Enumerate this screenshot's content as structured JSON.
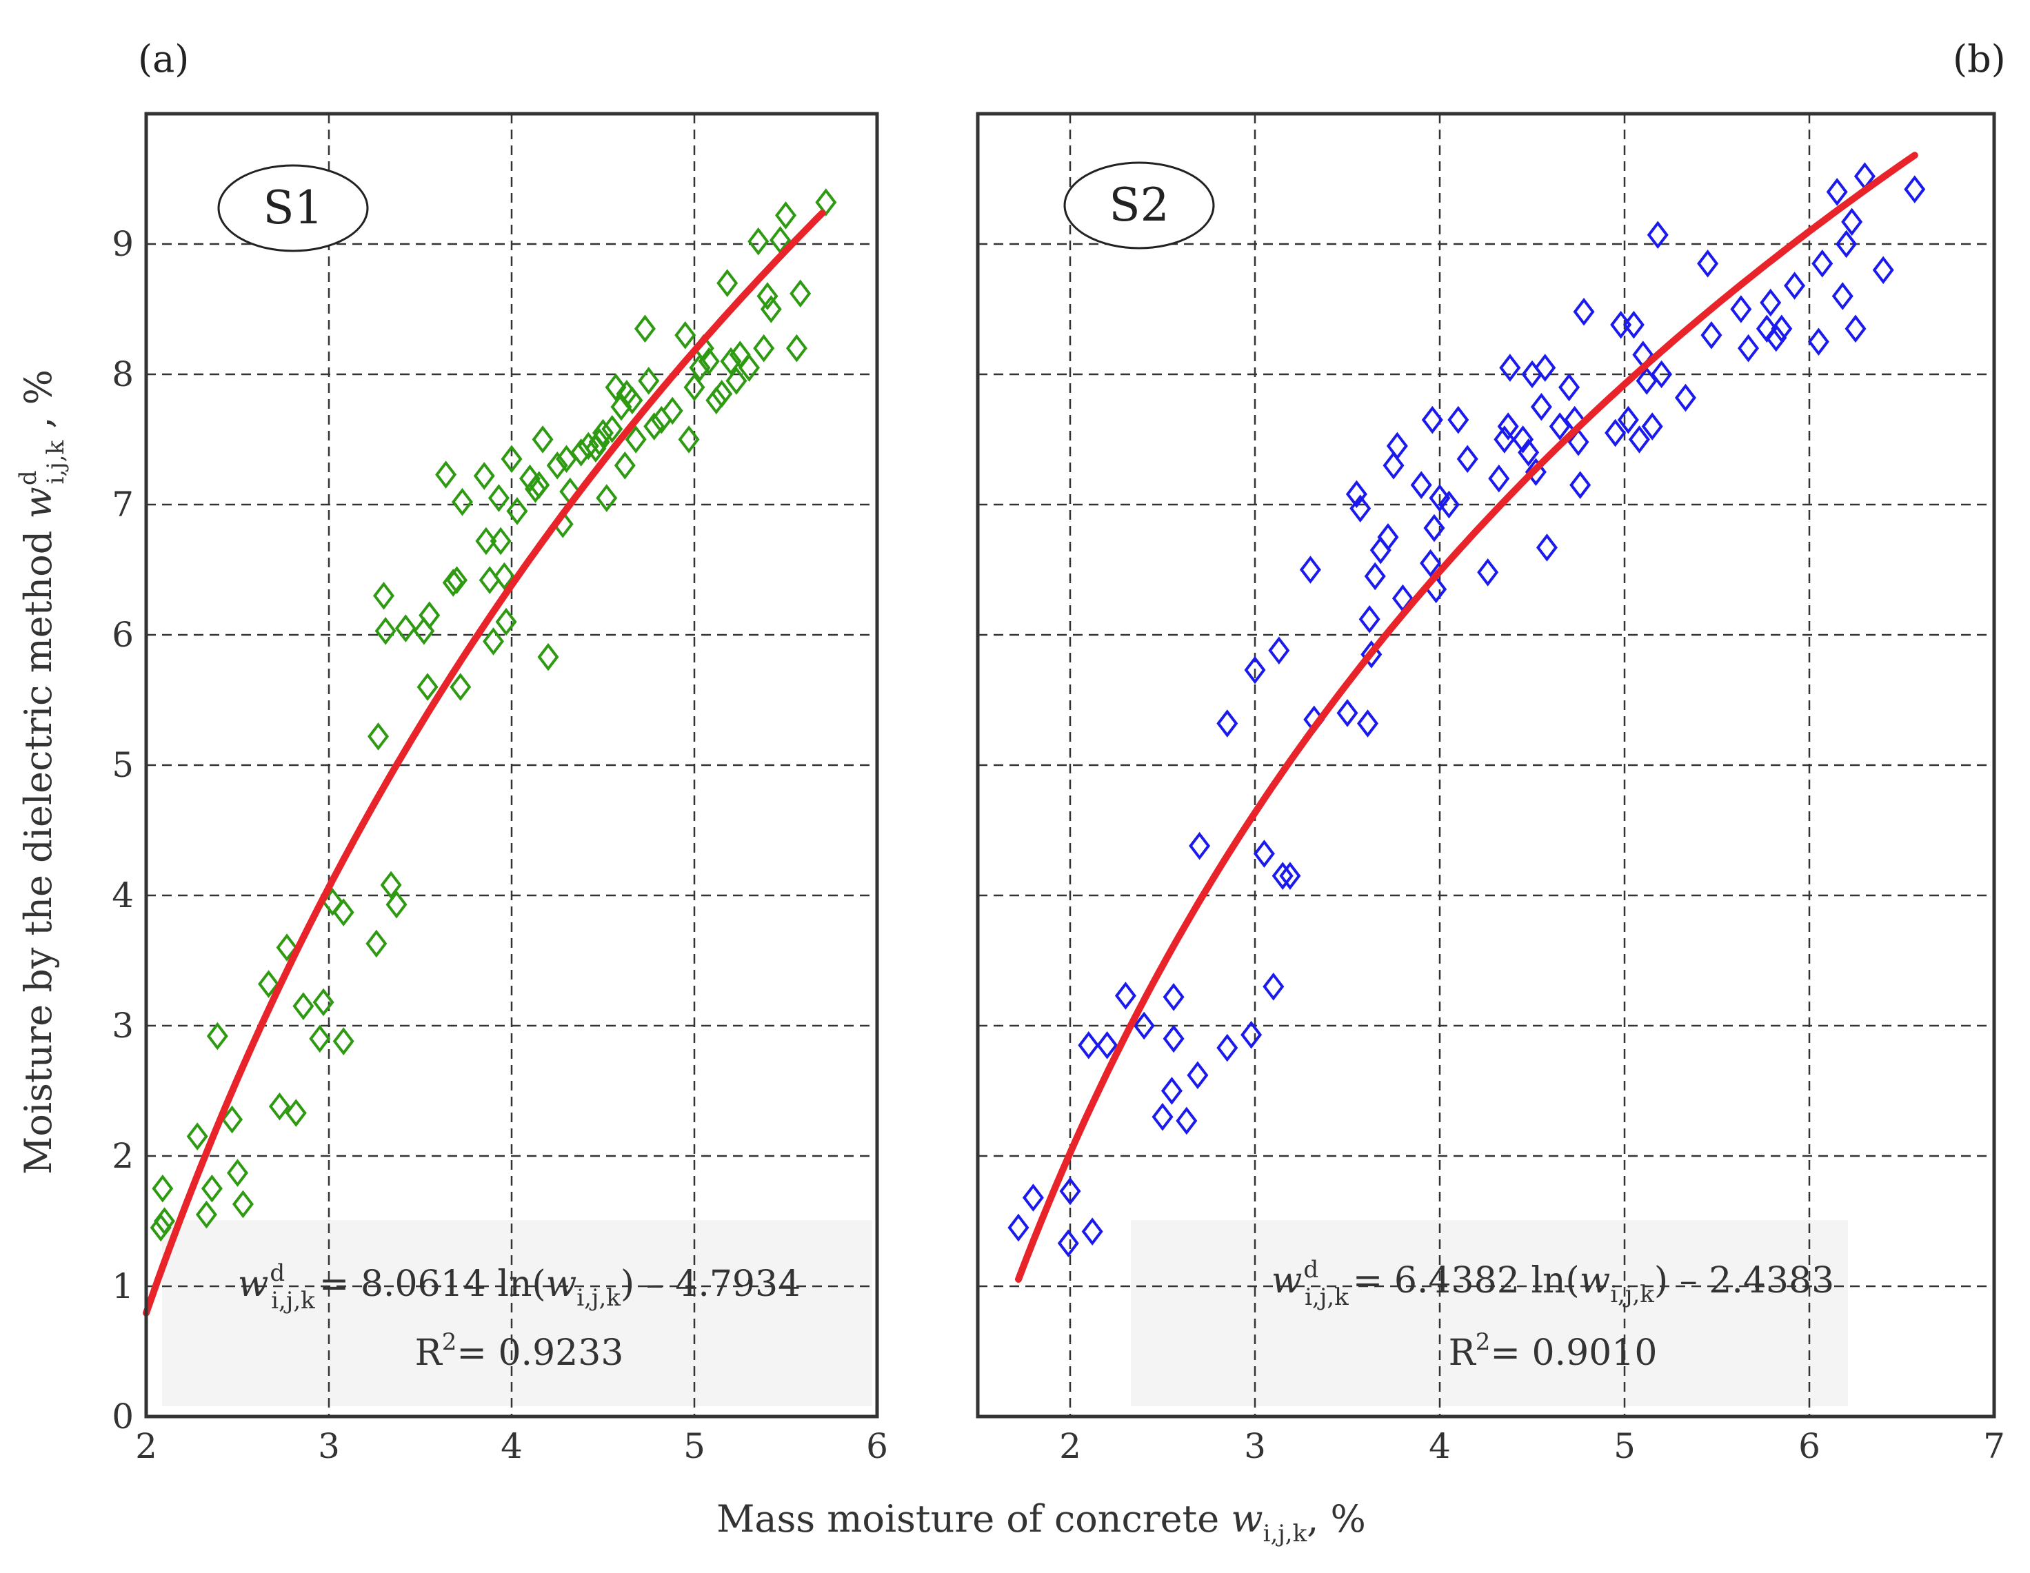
{
  "figure": {
    "panel_a_label": "(a)",
    "panel_b_label": "(b)",
    "x_axis_title_prefix": "Mass moisture of concrete ",
    "x_axis_var": "w",
    "x_axis_var_sub": "i,j,k",
    "x_axis_title_suffix": ", %",
    "y_axis_title_prefix": "Moisture by the dielectric method ",
    "y_axis_var": "w",
    "y_axis_var_sup": "d",
    "y_axis_var_sub": "i,j,k",
    "y_axis_title_suffix": " , %"
  },
  "chart_data": [
    {
      "type": "scatter",
      "panel": "(a)",
      "badge": "S1",
      "marker": "diamond",
      "marker_color": "#2e9a12",
      "fit_color": "#e8242a",
      "xlim": [
        2,
        6
      ],
      "ylim": [
        0,
        10
      ],
      "xticks": [
        "2",
        "3",
        "4",
        "5",
        "6"
      ],
      "yticks": [
        "0",
        "1",
        "2",
        "3",
        "4",
        "5",
        "6",
        "7",
        "8",
        "9"
      ],
      "grid": true,
      "fit": {
        "a": 8.0614,
        "b": -4.7934,
        "x_range": [
          2.0,
          5.7
        ]
      },
      "equation": {
        "var": "w",
        "sup": "d",
        "sub": "i,j,k",
        "rhs_prefix": "= 8.0614 ln(",
        "rhs_var": "w",
        "rhs_sub": "i,j,k",
        "rhs_suffix": ") – 4.7934",
        "r2_label": "R",
        "r2_sup": "2",
        "r2_value": "= 0.9233"
      },
      "points": [
        [
          2.08,
          1.45
        ],
        [
          2.09,
          1.75
        ],
        [
          2.1,
          1.5
        ],
        [
          2.28,
          2.15
        ],
        [
          2.33,
          1.55
        ],
        [
          2.36,
          1.75
        ],
        [
          2.39,
          2.92
        ],
        [
          2.47,
          2.28
        ],
        [
          2.5,
          1.87
        ],
        [
          2.53,
          1.63
        ],
        [
          2.67,
          3.32
        ],
        [
          2.73,
          2.38
        ],
        [
          2.77,
          3.6
        ],
        [
          2.82,
          2.33
        ],
        [
          2.86,
          3.15
        ],
        [
          2.95,
          2.9
        ],
        [
          2.97,
          3.18
        ],
        [
          3.02,
          3.95
        ],
        [
          3.08,
          3.87
        ],
        [
          3.08,
          2.88
        ],
        [
          3.26,
          3.63
        ],
        [
          3.27,
          5.22
        ],
        [
          3.3,
          6.3
        ],
        [
          3.31,
          6.03
        ],
        [
          3.34,
          4.08
        ],
        [
          3.37,
          3.93
        ],
        [
          3.42,
          6.05
        ],
        [
          3.52,
          6.03
        ],
        [
          3.54,
          5.6
        ],
        [
          3.55,
          6.15
        ],
        [
          3.64,
          7.23
        ],
        [
          3.68,
          6.4
        ],
        [
          3.7,
          6.42
        ],
        [
          3.72,
          5.6
        ],
        [
          3.73,
          7.02
        ],
        [
          3.85,
          7.22
        ],
        [
          3.86,
          6.72
        ],
        [
          3.88,
          6.42
        ],
        [
          3.9,
          5.95
        ],
        [
          3.93,
          7.05
        ],
        [
          3.94,
          6.72
        ],
        [
          3.96,
          6.45
        ],
        [
          3.97,
          6.1
        ],
        [
          4.0,
          7.35
        ],
        [
          4.03,
          6.95
        ],
        [
          4.1,
          7.2
        ],
        [
          4.13,
          7.12
        ],
        [
          4.15,
          7.15
        ],
        [
          4.17,
          7.5
        ],
        [
          4.2,
          5.83
        ],
        [
          4.25,
          7.3
        ],
        [
          4.28,
          6.85
        ],
        [
          4.3,
          7.35
        ],
        [
          4.32,
          7.1
        ],
        [
          4.38,
          7.4
        ],
        [
          4.42,
          7.45
        ],
        [
          4.46,
          7.43
        ],
        [
          4.48,
          7.48
        ],
        [
          4.5,
          7.55
        ],
        [
          4.52,
          7.05
        ],
        [
          4.55,
          7.58
        ],
        [
          4.57,
          7.9
        ],
        [
          4.6,
          7.75
        ],
        [
          4.62,
          7.3
        ],
        [
          4.63,
          7.85
        ],
        [
          4.66,
          7.8
        ],
        [
          4.68,
          7.5
        ],
        [
          4.73,
          8.35
        ],
        [
          4.75,
          7.95
        ],
        [
          4.78,
          7.6
        ],
        [
          4.82,
          7.65
        ],
        [
          4.88,
          7.72
        ],
        [
          4.95,
          8.3
        ],
        [
          4.97,
          7.5
        ],
        [
          5.0,
          7.9
        ],
        [
          5.03,
          8.05
        ],
        [
          5.05,
          8.2
        ],
        [
          5.08,
          8.1
        ],
        [
          5.12,
          7.8
        ],
        [
          5.15,
          7.85
        ],
        [
          5.18,
          8.7
        ],
        [
          5.2,
          8.1
        ],
        [
          5.23,
          7.95
        ],
        [
          5.25,
          8.15
        ],
        [
          5.3,
          8.05
        ],
        [
          5.35,
          9.02
        ],
        [
          5.38,
          8.2
        ],
        [
          5.4,
          8.6
        ],
        [
          5.42,
          8.5
        ],
        [
          5.47,
          9.03
        ],
        [
          5.5,
          9.22
        ],
        [
          5.56,
          8.2
        ],
        [
          5.58,
          8.62
        ],
        [
          5.72,
          9.32
        ]
      ]
    },
    {
      "type": "scatter",
      "panel": "(b)",
      "badge": "S2",
      "marker": "diamond",
      "marker_color": "#1a1aee",
      "fit_color": "#e8242a",
      "xlim": [
        1.5,
        7
      ],
      "ylim": [
        0,
        10
      ],
      "xticks": [
        "2",
        "3",
        "4",
        "5",
        "6",
        "7"
      ],
      "yticks": [],
      "grid": true,
      "fit": {
        "a": 6.4382,
        "b": -2.4383,
        "x_range": [
          1.72,
          6.57
        ]
      },
      "equation": {
        "var": "w",
        "sup": "d",
        "sub": "i,j,k",
        "rhs_prefix": "= 6.4382 ln(",
        "rhs_var": "w",
        "rhs_sub": "i,j,k",
        "rhs_suffix": ") – 2.4383",
        "r2_label": "R",
        "r2_sup": "2",
        "r2_value": "= 0.9010"
      },
      "points": [
        [
          1.72,
          1.45
        ],
        [
          1.8,
          1.68
        ],
        [
          1.99,
          1.33
        ],
        [
          2.0,
          1.73
        ],
        [
          2.1,
          2.85
        ],
        [
          2.12,
          1.42
        ],
        [
          2.2,
          2.85
        ],
        [
          2.3,
          3.23
        ],
        [
          2.4,
          3.0
        ],
        [
          2.5,
          2.3
        ],
        [
          2.55,
          2.5
        ],
        [
          2.56,
          3.22
        ],
        [
          2.56,
          2.9
        ],
        [
          2.63,
          2.27
        ],
        [
          2.69,
          2.62
        ],
        [
          2.7,
          4.38
        ],
        [
          2.85,
          2.83
        ],
        [
          2.85,
          5.32
        ],
        [
          2.98,
          2.93
        ],
        [
          3.0,
          5.73
        ],
        [
          3.05,
          4.32
        ],
        [
          3.1,
          3.3
        ],
        [
          3.13,
          5.88
        ],
        [
          3.15,
          4.15
        ],
        [
          3.19,
          4.15
        ],
        [
          3.3,
          6.5
        ],
        [
          3.32,
          5.35
        ],
        [
          3.5,
          5.4
        ],
        [
          3.55,
          7.08
        ],
        [
          3.57,
          6.97
        ],
        [
          3.61,
          5.32
        ],
        [
          3.62,
          6.12
        ],
        [
          3.63,
          5.85
        ],
        [
          3.65,
          6.45
        ],
        [
          3.68,
          6.65
        ],
        [
          3.72,
          6.75
        ],
        [
          3.75,
          7.3
        ],
        [
          3.77,
          7.45
        ],
        [
          3.8,
          6.28
        ],
        [
          3.9,
          7.15
        ],
        [
          3.95,
          6.55
        ],
        [
          3.96,
          7.65
        ],
        [
          3.97,
          6.82
        ],
        [
          3.98,
          6.35
        ],
        [
          4.0,
          7.05
        ],
        [
          4.05,
          7.0
        ],
        [
          4.1,
          7.65
        ],
        [
          4.15,
          7.35
        ],
        [
          4.26,
          6.48
        ],
        [
          4.32,
          7.2
        ],
        [
          4.35,
          7.5
        ],
        [
          4.37,
          7.6
        ],
        [
          4.38,
          8.05
        ],
        [
          4.45,
          7.5
        ],
        [
          4.48,
          7.4
        ],
        [
          4.5,
          8.0
        ],
        [
          4.52,
          7.25
        ],
        [
          4.55,
          7.75
        ],
        [
          4.57,
          8.05
        ],
        [
          4.58,
          6.67
        ],
        [
          4.65,
          7.6
        ],
        [
          4.7,
          7.9
        ],
        [
          4.73,
          7.65
        ],
        [
          4.75,
          7.48
        ],
        [
          4.76,
          7.15
        ],
        [
          4.78,
          8.48
        ],
        [
          4.95,
          7.55
        ],
        [
          4.98,
          8.38
        ],
        [
          5.02,
          7.65
        ],
        [
          5.05,
          8.38
        ],
        [
          5.08,
          7.5
        ],
        [
          5.1,
          8.15
        ],
        [
          5.12,
          7.95
        ],
        [
          5.15,
          7.6
        ],
        [
          5.18,
          9.07
        ],
        [
          5.2,
          8.0
        ],
        [
          5.33,
          7.82
        ],
        [
          5.45,
          8.85
        ],
        [
          5.47,
          8.3
        ],
        [
          5.63,
          8.5
        ],
        [
          5.67,
          8.2
        ],
        [
          5.77,
          8.35
        ],
        [
          5.79,
          8.55
        ],
        [
          5.82,
          8.28
        ],
        [
          5.85,
          8.35
        ],
        [
          5.92,
          8.68
        ],
        [
          6.05,
          8.25
        ],
        [
          6.07,
          8.85
        ],
        [
          6.15,
          9.4
        ],
        [
          6.18,
          8.6
        ],
        [
          6.2,
          9.0
        ],
        [
          6.23,
          9.17
        ],
        [
          6.25,
          8.35
        ],
        [
          6.3,
          9.52
        ],
        [
          6.4,
          8.8
        ],
        [
          6.57,
          9.42
        ]
      ]
    }
  ]
}
